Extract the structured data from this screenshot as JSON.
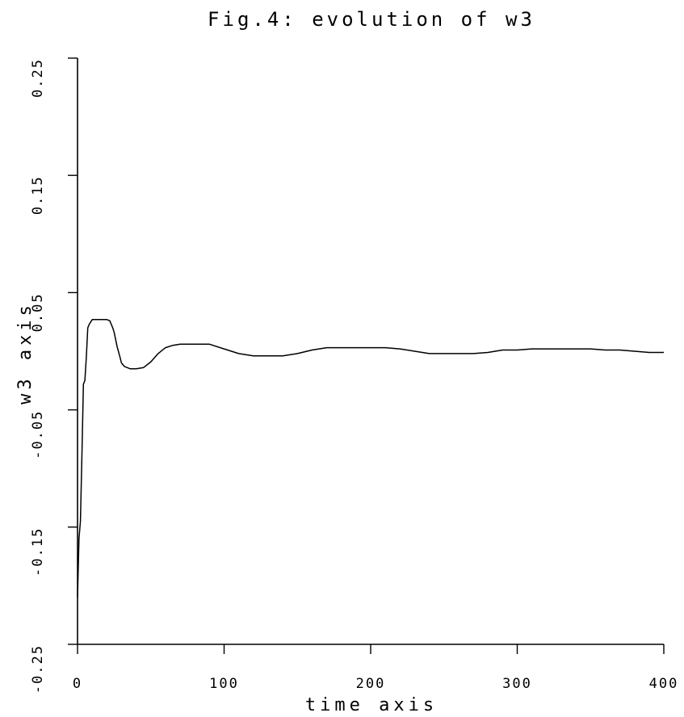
{
  "chart_data": {
    "type": "line",
    "title": "Fig.4: evolution of w3",
    "xlabel": "time axis",
    "ylabel": "w3 axis",
    "xlim": [
      0,
      400
    ],
    "ylim": [
      -0.25,
      0.25
    ],
    "x_ticks": [
      0,
      100,
      200,
      300,
      400
    ],
    "y_ticks": [
      -0.25,
      -0.15,
      -0.05,
      0.05,
      0.15,
      0.25
    ],
    "x_tick_labels": [
      "0",
      "100",
      "200",
      "300",
      "400"
    ],
    "y_tick_labels": [
      "-0.25",
      "-0.15",
      "-0.05",
      "0.05",
      "0.15",
      "0.25"
    ],
    "grid": false,
    "series": [
      {
        "x": [
          0,
          1,
          2,
          3,
          4,
          5,
          6,
          7,
          8,
          10,
          12,
          15,
          18,
          20,
          22,
          24,
          25,
          27,
          29,
          30,
          32,
          34,
          36,
          40,
          45,
          50,
          55,
          60,
          65,
          70,
          80,
          90,
          100,
          110,
          120,
          130,
          140,
          150,
          160,
          170,
          180,
          190,
          200,
          210,
          220,
          230,
          240,
          250,
          260,
          270,
          280,
          290,
          300,
          310,
          320,
          330,
          340,
          350,
          360,
          370,
          380,
          390,
          400
        ],
        "y": [
          -0.21,
          -0.16,
          -0.145,
          -0.09,
          -0.028,
          -0.025,
          -0.005,
          0.02,
          0.023,
          0.027,
          0.027,
          0.027,
          0.027,
          0.027,
          0.026,
          0.02,
          0.016,
          0.004,
          -0.005,
          -0.01,
          -0.013,
          -0.014,
          -0.015,
          -0.015,
          -0.014,
          -0.009,
          -0.002,
          0.003,
          0.005,
          0.006,
          0.006,
          0.006,
          0.002,
          -0.002,
          -0.004,
          -0.004,
          -0.004,
          -0.002,
          0.001,
          0.003,
          0.003,
          0.003,
          0.003,
          0.003,
          0.002,
          0.0,
          -0.002,
          -0.002,
          -0.002,
          -0.002,
          -0.001,
          0.001,
          0.001,
          0.002,
          0.002,
          0.002,
          0.002,
          0.002,
          0.001,
          0.001,
          0.0,
          -0.001,
          -0.001
        ]
      }
    ]
  }
}
